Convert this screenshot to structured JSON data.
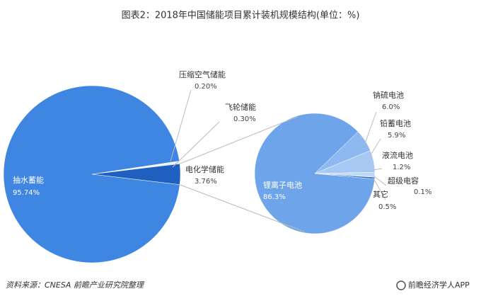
{
  "chart_data": [
    {
      "type": "pie",
      "title": "图表2：2018年中国储能项目累计装机规模结构(单位：%)",
      "categories": [
        "抽水蓄能",
        "电化学储能",
        "飞轮储能",
        "压缩空气储能"
      ],
      "values": [
        95.74,
        3.76,
        0.3,
        0.2
      ],
      "value_labels": [
        "95.74%",
        "3.76%",
        "0.30%",
        "0.20%"
      ],
      "colors": [
        "#3f86e2",
        "#1f5fbf",
        "#e4edf8",
        "#eef3fa"
      ]
    },
    {
      "type": "pie",
      "categories": [
        "锂离子电池",
        "钠硫电池",
        "铅蓄电池",
        "液流电池",
        "超级电容",
        "其它"
      ],
      "values": [
        86.3,
        6.0,
        5.9,
        1.2,
        0.1,
        0.5
      ],
      "value_labels": [
        "86.3%",
        "6.0%",
        "5.9%",
        "1.2%",
        "0.1%",
        "0.5%"
      ],
      "colors": [
        "#6ea5ea",
        "#8db9f0",
        "#a6c8f3",
        "#bfd7f6",
        "#1f4fa0",
        "#2e6fd0"
      ]
    }
  ],
  "source": "资料来源：CNESA  前瞻产业研究院整理",
  "logo": "前瞻经济学人APP"
}
